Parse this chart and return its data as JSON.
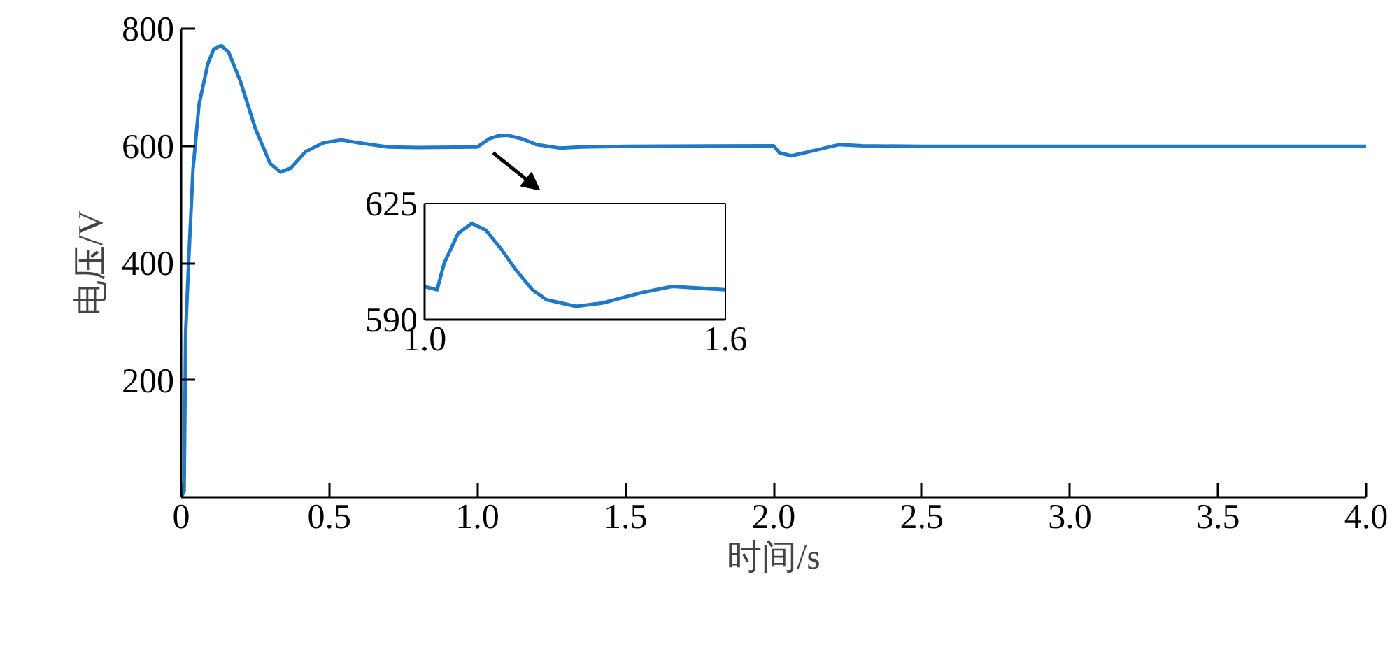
{
  "chart_data": [
    {
      "type": "line",
      "xlabel": "时间/s",
      "ylabel": "电压/V",
      "x": [
        0,
        0.01,
        0.015,
        0.025,
        0.04,
        0.06,
        0.09,
        0.11,
        0.135,
        0.16,
        0.2,
        0.25,
        0.3,
        0.335,
        0.37,
        0.42,
        0.48,
        0.54,
        0.6,
        0.7,
        0.8,
        1.0,
        1.04,
        1.07,
        1.1,
        1.15,
        1.2,
        1.28,
        1.35,
        1.5,
        2.0,
        2.02,
        2.06,
        2.12,
        2.22,
        2.3,
        2.5,
        3.0,
        3.5,
        4.0
      ],
      "series": [
        {
          "color": "#1f78c8",
          "values": [
            0,
            10,
            280,
            400,
            560,
            670,
            740,
            765,
            771,
            760,
            710,
            630,
            570,
            555,
            562,
            590,
            605,
            610,
            605,
            598,
            597,
            598,
            612,
            617,
            618,
            612,
            602,
            596,
            598,
            599,
            600,
            588,
            583,
            590,
            602,
            600,
            599,
            599,
            599,
            599
          ]
        }
      ],
      "xlim": [
        0,
        4
      ],
      "ylim": [
        0,
        800
      ],
      "xticks": [
        0,
        {
          "value": 0.5,
          "label": "0.5"
        },
        {
          "value": 1,
          "label": "1.0"
        },
        {
          "value": 1.5,
          "label": "1.5"
        },
        {
          "value": 2,
          "label": "2.0"
        },
        {
          "value": 2.5,
          "label": "2.5"
        },
        {
          "value": 3,
          "label": "3.0"
        },
        {
          "value": 3.5,
          "label": "3.5"
        },
        {
          "value": 4,
          "label": "4.0"
        }
      ],
      "yticks": [
        200,
        400,
        600,
        800
      ],
      "grid": false,
      "marker": "none",
      "line_style": "solid"
    },
    {
      "type": "line",
      "x": [
        1.0,
        1.025,
        1.039,
        1.067,
        1.094,
        1.122,
        1.154,
        1.182,
        1.215,
        1.243,
        1.302,
        1.355,
        1.429,
        1.494,
        1.6
      ],
      "series": [
        {
          "color": "#1f78c8",
          "values": [
            600,
            599,
            607,
            616,
            619,
            617,
            611,
            605,
            599,
            596,
            594,
            595,
            598,
            600,
            599
          ]
        }
      ],
      "xlim": [
        1.0,
        1.6
      ],
      "ylim": [
        590,
        625
      ],
      "xticks": [
        {
          "value": 1.0,
          "label": "1.0"
        },
        {
          "value": 1.6,
          "label": "1.6"
        }
      ],
      "yticks": [
        590,
        625
      ],
      "grid": false,
      "marker": "none",
      "line_style": "solid"
    }
  ]
}
